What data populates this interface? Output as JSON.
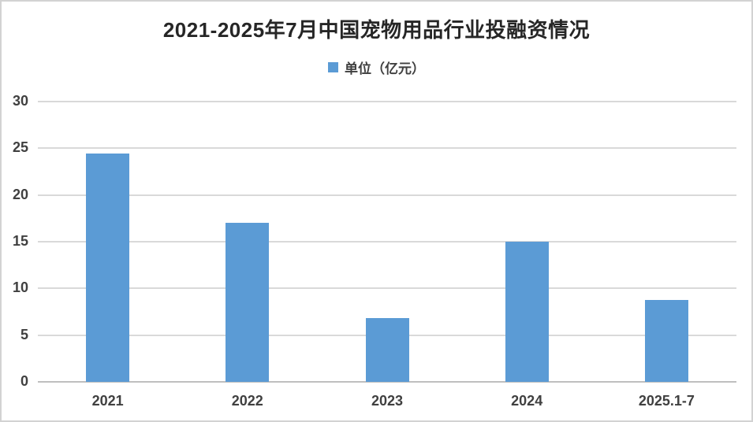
{
  "chart_data": {
    "type": "bar",
    "title": "2021-2025年7月中国宠物用品行业投融资情况",
    "legend_label": "单位（亿元）",
    "legend_position": "top",
    "categories": [
      "2021",
      "2022",
      "2023",
      "2024",
      "2025.1-7"
    ],
    "values": [
      24.4,
      17,
      6.8,
      15,
      8.8
    ],
    "unit": "亿元",
    "ylim": [
      0,
      30
    ],
    "yticks": [
      0,
      5,
      10,
      15,
      20,
      25,
      30
    ],
    "grid": true,
    "colors": {
      "bar": "#5b9bd5",
      "gridline": "#d9d9d9",
      "axis_line": "#bfbfbf",
      "tick_text": "#404040",
      "title_text": "#262626",
      "frame_border": "#d2d2d2",
      "background": "#ffffff"
    }
  }
}
